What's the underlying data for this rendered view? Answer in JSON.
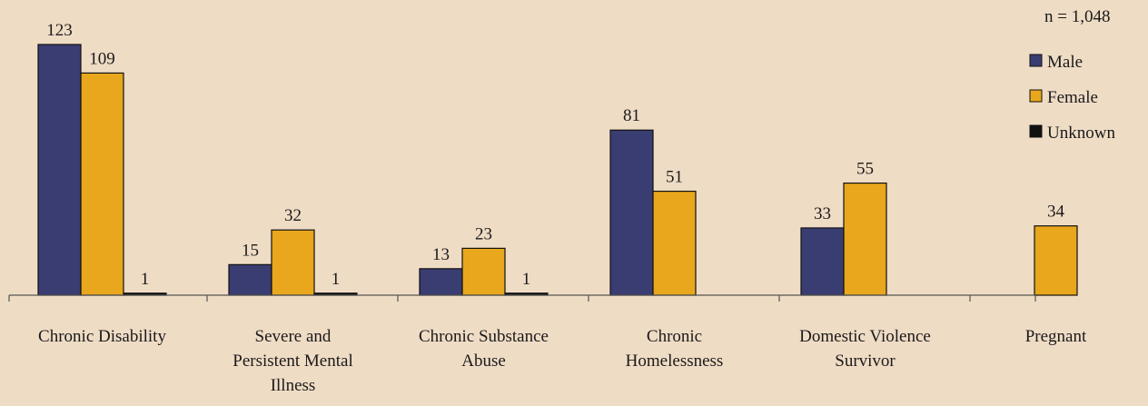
{
  "note": "n = 1,048",
  "colors": {
    "Male": "#3a3d72",
    "Female": "#e8a71c",
    "Unknown": "#111111",
    "background": "#efdcc5"
  },
  "chart_data": {
    "type": "bar",
    "categories": [
      "Chronic Disability",
      "Severe and Persistent Mental Illness",
      "Chronic Substance Abuse",
      "Chronic Homelessness",
      "Domestic Violence Survivor",
      "Pregnant"
    ],
    "category_label_lines": [
      [
        "Chronic Disability"
      ],
      [
        "Severe and",
        "Persistent Mental",
        "Illness"
      ],
      [
        "Chronic Substance",
        "Abuse"
      ],
      [
        "Chronic",
        "Homelessness"
      ],
      [
        "Domestic Violence",
        "Survivor"
      ],
      [
        "Pregnant"
      ]
    ],
    "series": [
      {
        "name": "Male",
        "values": [
          123,
          15,
          13,
          81,
          33,
          null
        ]
      },
      {
        "name": "Female",
        "values": [
          109,
          32,
          23,
          51,
          55,
          34
        ]
      },
      {
        "name": "Unknown",
        "values": [
          1,
          1,
          1,
          null,
          null,
          null
        ]
      }
    ],
    "ylim": [
      0,
      125
    ],
    "legend_position": "top-right",
    "grid": false
  }
}
